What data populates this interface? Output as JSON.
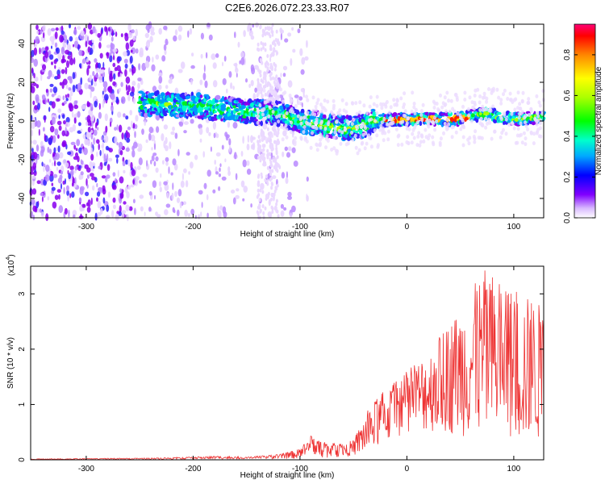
{
  "title": "C2E6.2026.072.23.33.R07",
  "chart_data": [
    {
      "type": "heatmap",
      "xlabel": "Height of straight line (km)",
      "ylabel": "Frequency (Hz)",
      "xlim": [
        -352,
        128
      ],
      "ylim": [
        -50,
        50
      ],
      "xticks": [
        -300,
        -200,
        -100,
        0,
        100
      ],
      "yticks": [
        -40,
        -20,
        0,
        20,
        40
      ],
      "ridge_frequency_hz": [
        {
          "x": -250,
          "y": 9
        },
        {
          "x": -200,
          "y": 8
        },
        {
          "x": -150,
          "y": 5
        },
        {
          "x": -120,
          "y": 4
        },
        {
          "x": -100,
          "y": 0
        },
        {
          "x": -80,
          "y": -2
        },
        {
          "x": -50,
          "y": -4
        },
        {
          "x": -30,
          "y": 0
        },
        {
          "x": 0,
          "y": 1
        },
        {
          "x": 50,
          "y": 1
        },
        {
          "x": 70,
          "y": 4
        },
        {
          "x": 100,
          "y": 1
        },
        {
          "x": 128,
          "y": 2
        }
      ],
      "colorbar": {
        "label": "Normalized spectral amplitude",
        "range": [
          0,
          0.95
        ],
        "ticks": [
          "0.0",
          "0.2",
          "0.4",
          "0.6",
          "0.8"
        ]
      }
    },
    {
      "type": "line",
      "xlabel": "Height of straight line (km)",
      "ylabel": "SNR (10 * v/v)",
      "scale_label": "(x10",
      "scale_exponent": "4",
      "xlim": [
        -352,
        128
      ],
      "ylim": [
        0,
        3.5
      ],
      "xticks": [
        -300,
        -200,
        -100,
        0,
        100
      ],
      "yticks": [
        0,
        1,
        2,
        3
      ],
      "envelope": [
        {
          "x": -352,
          "y": 0.02
        },
        {
          "x": -250,
          "y": 0.03
        },
        {
          "x": -200,
          "y": 0.05
        },
        {
          "x": -180,
          "y": 0.07
        },
        {
          "x": -150,
          "y": 0.05
        },
        {
          "x": -120,
          "y": 0.1
        },
        {
          "x": -100,
          "y": 0.2
        },
        {
          "x": -90,
          "y": 0.45
        },
        {
          "x": -70,
          "y": 0.3
        },
        {
          "x": -50,
          "y": 0.35
        },
        {
          "x": -40,
          "y": 0.8
        },
        {
          "x": -25,
          "y": 1.2
        },
        {
          "x": 0,
          "y": 1.6
        },
        {
          "x": 25,
          "y": 2.1
        },
        {
          "x": 50,
          "y": 2.8
        },
        {
          "x": 75,
          "y": 3.5
        },
        {
          "x": 90,
          "y": 3.2
        },
        {
          "x": 110,
          "y": 3.0
        },
        {
          "x": 128,
          "y": 2.8
        }
      ],
      "baseline": [
        {
          "x": -352,
          "y": 0.0
        },
        {
          "x": -100,
          "y": 0.02
        },
        {
          "x": -60,
          "y": 0.05
        },
        {
          "x": -40,
          "y": 0.1
        },
        {
          "x": -20,
          "y": 0.3
        },
        {
          "x": 0,
          "y": 0.5
        },
        {
          "x": 30,
          "y": 0.5
        },
        {
          "x": 60,
          "y": 0.4
        },
        {
          "x": 100,
          "y": 0.3
        },
        {
          "x": 128,
          "y": 0.3
        }
      ],
      "color": "#ee3333"
    }
  ]
}
